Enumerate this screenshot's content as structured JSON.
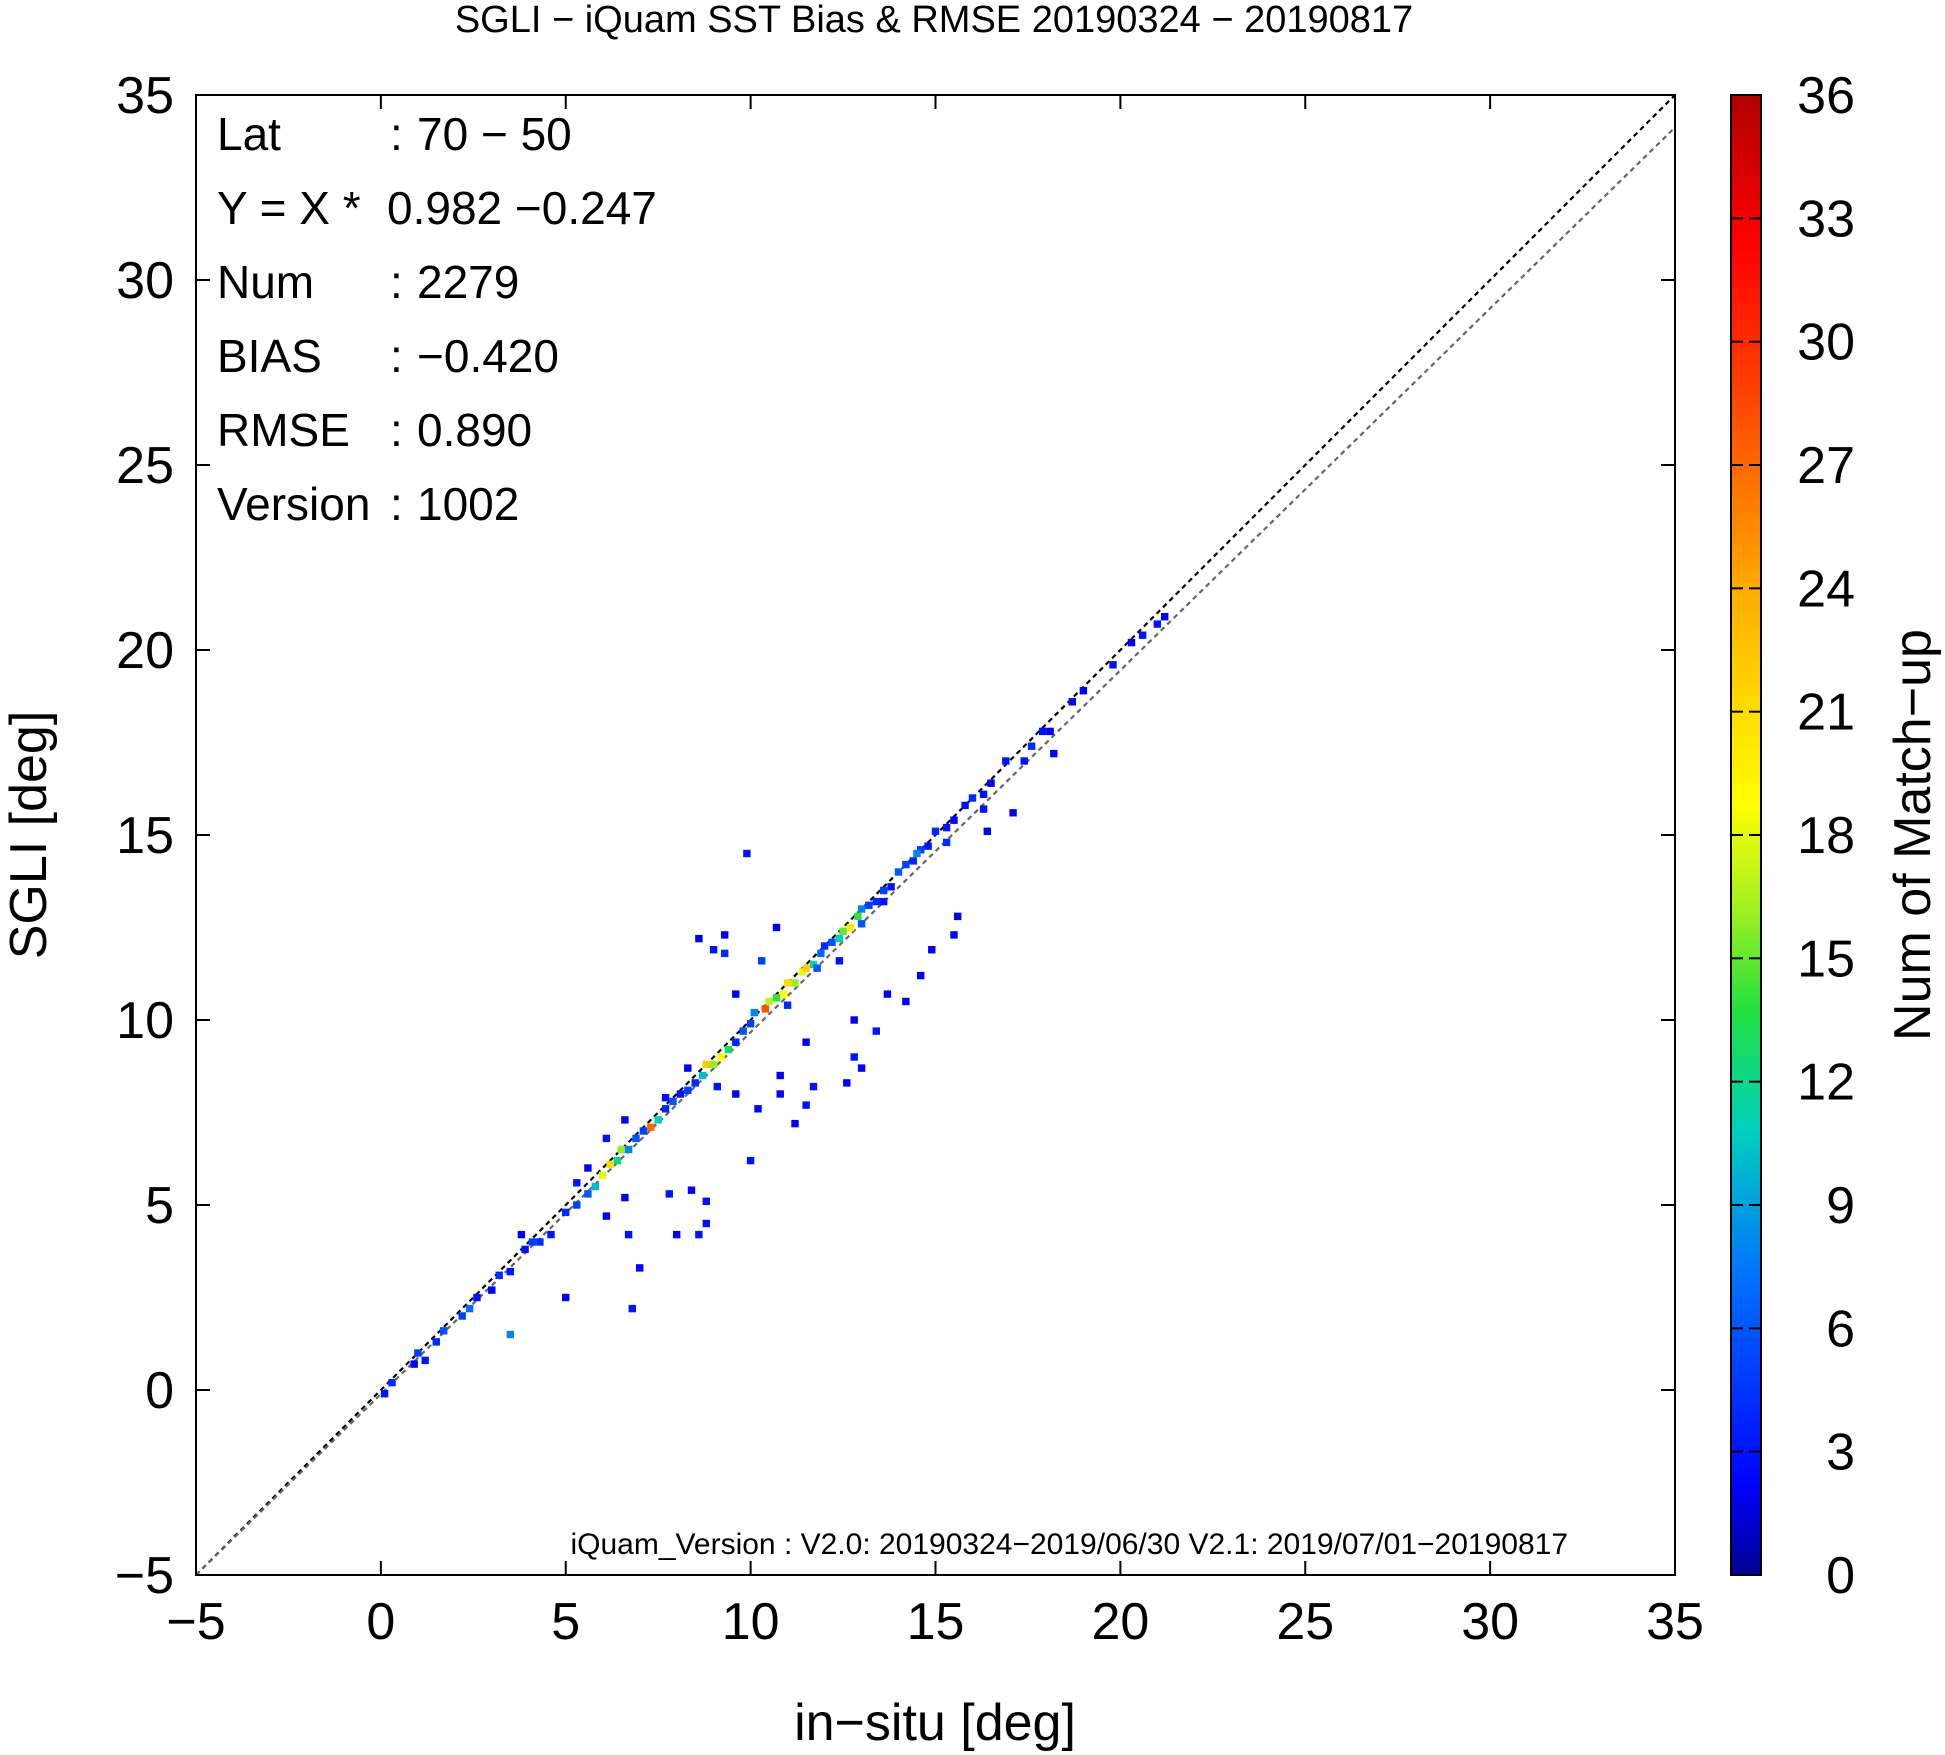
{
  "chart_data": {
    "type": "heatmap",
    "title": "SGLI − iQuam  SST Bias & RMSE 20190324 − 20190817",
    "xlabel": "in−situ [deg]",
    "ylabel": "SGLI [deg]",
    "xlim": [
      -5,
      35
    ],
    "ylim": [
      -5,
      35
    ],
    "xticks": [
      "−5",
      "0",
      "5",
      "10",
      "15",
      "20",
      "25",
      "30",
      "35"
    ],
    "yticks": [
      "−5",
      "0",
      "5",
      "10",
      "15",
      "20",
      "25",
      "30",
      "35"
    ],
    "colorbar": {
      "label": "Num of Match−up",
      "range": [
        0,
        36
      ],
      "ticks": [
        "0",
        "3",
        "6",
        "9",
        "12",
        "15",
        "18",
        "21",
        "24",
        "27",
        "30",
        "33",
        "36"
      ]
    },
    "stats": [
      {
        "key": "Lat",
        "sep": ":",
        "value": "70 − 50"
      },
      {
        "key": "Y = X *",
        "sep": "",
        "value": "0.982 −0.247"
      },
      {
        "key": "Num",
        "sep": ":",
        "value": "2279"
      },
      {
        "key": "BIAS",
        "sep": ":",
        "value": "−0.420"
      },
      {
        "key": "RMSE",
        "sep": ":",
        "value": "0.890"
      },
      {
        "key": "Version",
        "sep": ":",
        "value": "1002"
      }
    ],
    "footnote": "iQuam_Version : V2.0: 20190324−2019/06/30 V2.1: 2019/07/01−20190817",
    "lines": [
      {
        "name": "1:1",
        "slope": 1,
        "intercept": 0,
        "color": "#000000"
      },
      {
        "name": "regression",
        "slope": 0.982,
        "intercept": -0.247,
        "color": "#666666"
      }
    ],
    "bins": [
      [
        0.1,
        -0.1,
        3
      ],
      [
        0.3,
        0.2,
        4
      ],
      [
        0.9,
        0.7,
        2
      ],
      [
        1.0,
        1.0,
        5
      ],
      [
        1.2,
        0.8,
        3
      ],
      [
        1.5,
        1.3,
        4
      ],
      [
        1.7,
        1.6,
        6
      ],
      [
        2.2,
        2.0,
        5
      ],
      [
        2.4,
        2.2,
        7
      ],
      [
        2.6,
        2.5,
        3
      ],
      [
        3.0,
        2.7,
        2
      ],
      [
        3.2,
        3.1,
        4
      ],
      [
        3.5,
        3.2,
        3
      ],
      [
        3.9,
        3.8,
        3
      ],
      [
        4.1,
        4.0,
        5
      ],
      [
        4.3,
        4.0,
        4
      ],
      [
        3.8,
        4.2,
        2
      ],
      [
        4.6,
        4.2,
        3
      ],
      [
        5.0,
        4.8,
        4
      ],
      [
        5.3,
        5.0,
        5
      ],
      [
        5.6,
        5.3,
        6
      ],
      [
        5.8,
        5.5,
        10
      ],
      [
        6.0,
        5.8,
        18
      ],
      [
        6.2,
        6.1,
        21
      ],
      [
        6.4,
        6.2,
        12
      ],
      [
        6.5,
        6.5,
        16
      ],
      [
        6.7,
        6.5,
        8
      ],
      [
        6.9,
        6.8,
        6
      ],
      [
        7.1,
        7.0,
        5
      ],
      [
        7.3,
        7.1,
        27
      ],
      [
        7.5,
        7.3,
        11
      ],
      [
        7.7,
        7.6,
        4
      ],
      [
        7.9,
        7.8,
        6
      ],
      [
        8.1,
        8.0,
        3
      ],
      [
        8.3,
        8.1,
        5
      ],
      [
        8.5,
        8.3,
        4
      ],
      [
        8.7,
        8.5,
        10
      ],
      [
        8.8,
        8.8,
        22
      ],
      [
        9.0,
        8.8,
        16
      ],
      [
        9.2,
        9.0,
        19
      ],
      [
        9.4,
        9.2,
        13
      ],
      [
        9.6,
        9.4,
        10
      ],
      [
        9.8,
        9.7,
        6
      ],
      [
        10.0,
        9.9,
        5
      ],
      [
        10.1,
        10.2,
        8
      ],
      [
        10.4,
        10.3,
        28
      ],
      [
        10.5,
        10.5,
        17
      ],
      [
        10.7,
        10.6,
        14
      ],
      [
        10.9,
        10.7,
        19
      ],
      [
        11.0,
        11.0,
        21
      ],
      [
        11.2,
        11.0,
        16
      ],
      [
        11.4,
        11.3,
        18
      ],
      [
        11.5,
        11.4,
        22
      ],
      [
        11.7,
        11.5,
        12
      ],
      [
        11.9,
        11.8,
        7
      ],
      [
        12.0,
        12.0,
        4
      ],
      [
        12.2,
        12.1,
        6
      ],
      [
        12.4,
        12.2,
        11
      ],
      [
        12.5,
        12.4,
        15
      ],
      [
        12.7,
        12.5,
        20
      ],
      [
        12.9,
        12.8,
        14
      ],
      [
        13.0,
        13.0,
        8
      ],
      [
        13.2,
        13.1,
        5
      ],
      [
        13.4,
        13.2,
        4
      ],
      [
        13.6,
        13.5,
        5
      ],
      [
        13.8,
        13.6,
        3
      ],
      [
        14.0,
        14.0,
        6
      ],
      [
        14.2,
        14.2,
        5
      ],
      [
        14.4,
        14.3,
        4
      ],
      [
        14.6,
        14.6,
        5
      ],
      [
        14.8,
        14.7,
        3
      ],
      [
        15.0,
        15.1,
        4
      ],
      [
        15.3,
        15.2,
        3
      ],
      [
        15.5,
        15.4,
        2
      ],
      [
        15.8,
        15.8,
        3
      ],
      [
        16.0,
        16.0,
        4
      ],
      [
        16.3,
        16.1,
        3
      ],
      [
        16.5,
        16.4,
        2
      ],
      [
        16.9,
        17.0,
        3
      ],
      [
        17.4,
        17.0,
        3
      ],
      [
        17.6,
        17.4,
        4
      ],
      [
        17.9,
        17.8,
        3
      ],
      [
        18.1,
        17.8,
        2
      ],
      [
        18.7,
        18.6,
        2
      ],
      [
        19.0,
        18.9,
        2
      ],
      [
        19.8,
        19.6,
        3
      ],
      [
        20.3,
        20.2,
        2
      ],
      [
        20.6,
        20.4,
        3
      ],
      [
        21.0,
        20.7,
        3
      ],
      [
        21.2,
        20.9,
        2
      ],
      [
        3.5,
        1.5,
        8
      ],
      [
        5.0,
        2.5,
        2
      ],
      [
        6.8,
        2.2,
        3
      ],
      [
        7.0,
        3.3,
        2
      ],
      [
        6.7,
        4.2,
        3
      ],
      [
        6.1,
        4.7,
        2
      ],
      [
        6.6,
        5.2,
        2
      ],
      [
        7.8,
        5.3,
        3
      ],
      [
        8.0,
        4.2,
        2
      ],
      [
        8.6,
        4.2,
        3
      ],
      [
        8.4,
        5.4,
        2
      ],
      [
        8.8,
        5.1,
        3
      ],
      [
        8.8,
        4.5,
        3
      ],
      [
        10.0,
        6.2,
        3
      ],
      [
        9.6,
        8.0,
        2
      ],
      [
        9.1,
        8.2,
        3
      ],
      [
        10.2,
        7.6,
        2
      ],
      [
        10.8,
        8.5,
        2
      ],
      [
        11.2,
        7.2,
        2
      ],
      [
        11.5,
        7.7,
        3
      ],
      [
        11.7,
        8.2,
        3
      ],
      [
        12.6,
        8.3,
        2
      ],
      [
        12.8,
        9.0,
        3
      ],
      [
        13.0,
        8.7,
        2
      ],
      [
        10.8,
        8.0,
        2
      ],
      [
        9.6,
        10.7,
        2
      ],
      [
        9.0,
        11.9,
        3
      ],
      [
        9.3,
        11.8,
        4
      ],
      [
        9.9,
        14.5,
        3
      ],
      [
        10.7,
        12.5,
        2
      ],
      [
        11.5,
        9.4,
        2
      ],
      [
        12.8,
        10.0,
        2
      ],
      [
        13.4,
        9.7,
        3
      ],
      [
        13.7,
        10.7,
        2
      ],
      [
        14.2,
        10.5,
        2
      ],
      [
        14.6,
        11.2,
        2
      ],
      [
        14.9,
        11.9,
        2
      ],
      [
        15.5,
        12.3,
        2
      ],
      [
        15.6,
        12.8,
        2
      ],
      [
        16.4,
        15.1,
        2
      ],
      [
        17.1,
        15.6,
        2
      ],
      [
        18.2,
        17.2,
        2
      ],
      [
        8.6,
        12.2,
        2
      ],
      [
        9.3,
        12.3,
        2
      ],
      [
        5.3,
        5.6,
        3
      ],
      [
        5.6,
        6.0,
        2
      ],
      [
        6.1,
        6.8,
        3
      ],
      [
        6.6,
        7.3,
        2
      ],
      [
        7.7,
        7.9,
        3
      ],
      [
        8.3,
        8.7,
        2
      ],
      [
        9.6,
        9.4,
        4
      ],
      [
        10.3,
        11.6,
        5
      ],
      [
        11.0,
        10.4,
        4
      ],
      [
        11.8,
        11.4,
        6
      ],
      [
        12.4,
        11.6,
        3
      ],
      [
        13.0,
        12.6,
        6
      ],
      [
        13.6,
        13.2,
        3
      ],
      [
        14.5,
        14.5,
        8
      ],
      [
        15.3,
        14.8,
        4
      ],
      [
        16.3,
        15.7,
        3
      ]
    ]
  }
}
